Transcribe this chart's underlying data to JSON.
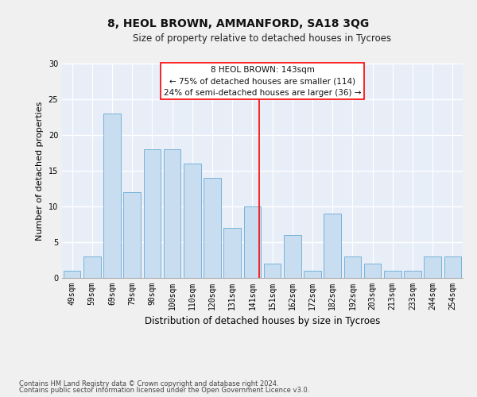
{
  "title": "8, HEOL BROWN, AMMANFORD, SA18 3QG",
  "subtitle": "Size of property relative to detached houses in Tycroes",
  "xlabel": "Distribution of detached houses by size in Tycroes",
  "ylabel": "Number of detached properties",
  "categories": [
    "49sqm",
    "59sqm",
    "69sqm",
    "79sqm",
    "90sqm",
    "100sqm",
    "110sqm",
    "120sqm",
    "131sqm",
    "141sqm",
    "151sqm",
    "162sqm",
    "172sqm",
    "182sqm",
    "192sqm",
    "203sqm",
    "213sqm",
    "233sqm",
    "244sqm",
    "254sqm"
  ],
  "values": [
    1,
    3,
    23,
    12,
    18,
    18,
    16,
    14,
    7,
    10,
    2,
    6,
    1,
    9,
    3,
    2,
    1,
    1,
    3,
    3
  ],
  "bar_color": "#c8ddf0",
  "bar_edge_color": "#6aaad4",
  "annotation_title": "8 HEOL BROWN: 143sqm",
  "annotation_line1": "← 75% of detached houses are smaller (114)",
  "annotation_line2": "24% of semi-detached houses are larger (36) →",
  "ylim": [
    0,
    30
  ],
  "yticks": [
    0,
    5,
    10,
    15,
    20,
    25,
    30
  ],
  "bg_color": "#e8eef8",
  "grid_color": "#ffffff",
  "fig_bg_color": "#f0f0f0",
  "footnote1": "Contains HM Land Registry data © Crown copyright and database right 2024.",
  "footnote2": "Contains public sector information licensed under the Open Government Licence v3.0.",
  "title_fontsize": 10,
  "subtitle_fontsize": 8.5,
  "ylabel_fontsize": 8,
  "xlabel_fontsize": 8.5,
  "tick_fontsize": 7,
  "annotation_fontsize": 7.5,
  "footnote_fontsize": 6
}
